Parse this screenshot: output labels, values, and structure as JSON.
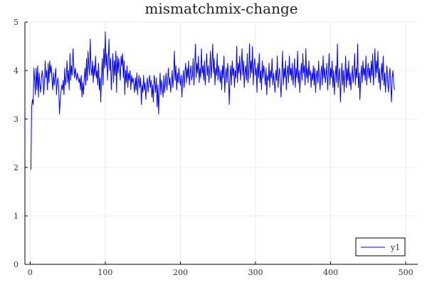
{
  "chart_data": {
    "type": "line",
    "title": "mismatchmix-change",
    "xlabel": "",
    "ylabel": "",
    "xlim": [
      -7,
      516
    ],
    "ylim": [
      0,
      5
    ],
    "xticks": [
      0,
      100,
      200,
      300,
      400,
      500
    ],
    "yticks": [
      0,
      1,
      2,
      3,
      4,
      5
    ],
    "grid": true,
    "legend_position": "bottom-right",
    "series": [
      {
        "name": "y1",
        "color": "#0000ff",
        "x_start": 1,
        "x_step": 1,
        "values": [
          1.95,
          3.25,
          3.4,
          3.3,
          4.05,
          3.8,
          3.5,
          4.05,
          3.6,
          4.1,
          3.45,
          3.95,
          3.7,
          3.55,
          3.85,
          4.0,
          3.85,
          3.5,
          3.75,
          4.2,
          3.85,
          4.0,
          3.6,
          4.15,
          3.75,
          4.2,
          3.95,
          4.1,
          3.8,
          3.6,
          3.95,
          3.7,
          3.85,
          4.05,
          3.5,
          3.75,
          3.85,
          3.65,
          3.1,
          3.4,
          3.55,
          3.7,
          3.6,
          3.8,
          3.5,
          4.05,
          3.7,
          3.85,
          4.2,
          3.75,
          4.0,
          3.6,
          4.35,
          3.8,
          4.1,
          3.9,
          4.45,
          4.1,
          3.85,
          4.05,
          3.9,
          3.8,
          3.95,
          3.85,
          3.75,
          3.85,
          3.6,
          3.9,
          3.45,
          3.75,
          3.5,
          3.85,
          4.05,
          3.7,
          4.25,
          3.8,
          4.4,
          4.1,
          3.9,
          4.65,
          4.05,
          3.9,
          4.2,
          3.75,
          4.1,
          3.9,
          4.3,
          3.85,
          4.0,
          3.7,
          4.15,
          3.6,
          3.85,
          3.35,
          3.9,
          4.25,
          3.7,
          4.45,
          4.05,
          4.8,
          4.1,
          4.35,
          3.8,
          4.2,
          4.65,
          4.0,
          4.25,
          3.6,
          4.0,
          4.35,
          3.75,
          4.2,
          3.9,
          4.4,
          3.55,
          4.3,
          3.95,
          4.25,
          4.05,
          3.8,
          4.3,
          4.1,
          4.35,
          3.85,
          4.2,
          3.5,
          4.0,
          3.75,
          4.1,
          3.65,
          3.95,
          3.8,
          4.0,
          3.6,
          3.9,
          3.75,
          3.85,
          3.7,
          3.55,
          3.85,
          3.6,
          3.95,
          3.5,
          3.75,
          3.9,
          3.65,
          3.85,
          3.3,
          3.7,
          3.55,
          3.9,
          3.6,
          3.75,
          3.4,
          3.7,
          3.85,
          3.55,
          3.75,
          3.9,
          3.65,
          3.8,
          3.45,
          3.7,
          3.35,
          3.9,
          3.75,
          3.55,
          3.85,
          3.25,
          3.7,
          3.1,
          3.6,
          3.95,
          3.5,
          3.8,
          3.65,
          3.45,
          3.9,
          3.55,
          3.75,
          3.95,
          3.6,
          3.8,
          4.05,
          3.7,
          3.85,
          3.55,
          3.75,
          4.0,
          3.65,
          3.9,
          4.4,
          3.8,
          4.1,
          3.6,
          3.95,
          3.75,
          4.05,
          3.85,
          3.7,
          3.9,
          3.45,
          3.8,
          4.0,
          3.65,
          3.95,
          4.15,
          3.75,
          4.05,
          3.85,
          4.2,
          3.7,
          3.95,
          4.1,
          3.8,
          3.9,
          4.25,
          3.7,
          4.05,
          4.55,
          3.85,
          4.15,
          3.95,
          4.3,
          3.75,
          4.05,
          3.85,
          4.45,
          3.95,
          4.1,
          3.8,
          4.2,
          3.7,
          4.05,
          4.35,
          3.9,
          4.1,
          3.75,
          4.0,
          4.4,
          3.85,
          4.15,
          4.55,
          3.95,
          4.25,
          3.7,
          4.05,
          3.9,
          4.35,
          3.8,
          4.1,
          3.95,
          3.75,
          4.0,
          3.6,
          4.1,
          3.85,
          4.3,
          3.55,
          3.9,
          4.05,
          3.75,
          4.15,
          3.95,
          3.3,
          3.85,
          4.1,
          3.7,
          4.2,
          3.9,
          4.05,
          3.65,
          4.0,
          3.85,
          4.5,
          3.75,
          4.15,
          3.95,
          4.3,
          3.8,
          4.05,
          4.45,
          3.9,
          4.2,
          3.65,
          3.95,
          4.1,
          3.8,
          4.35,
          3.75,
          4.0,
          4.55,
          3.85,
          4.2,
          3.95,
          4.5,
          3.7,
          4.1,
          4.25,
          3.9,
          4.05,
          3.55,
          4.15,
          3.85,
          4.35,
          3.75,
          4.0,
          3.6,
          4.2,
          3.85,
          4.1,
          3.95,
          3.7,
          4.05,
          3.5,
          3.9,
          3.8,
          4.15,
          3.65,
          4.0,
          3.85,
          4.25,
          3.7,
          3.95,
          3.75,
          3.55,
          4.0,
          3.8,
          4.3,
          3.65,
          3.9,
          4.05,
          3.75,
          3.45,
          3.9,
          4.4,
          3.7,
          4.05,
          3.85,
          4.2,
          3.6,
          3.95,
          4.1,
          3.75,
          4.3,
          3.9,
          4.05,
          3.8,
          4.15,
          3.7,
          3.95,
          4.25,
          3.65,
          4.05,
          3.85,
          4.4,
          3.75,
          4.0,
          3.55,
          3.9,
          4.15,
          3.8,
          4.35,
          3.95,
          4.1,
          3.7,
          4.45,
          3.85,
          4.05,
          3.75,
          4.2,
          3.9,
          4.0,
          3.65,
          3.95,
          3.8,
          4.1,
          3.7,
          4.05,
          3.55,
          3.9,
          4.0,
          3.75,
          4.2,
          3.85,
          3.6,
          3.95,
          4.1,
          3.7,
          4.3,
          3.85,
          4.05,
          3.75,
          3.9,
          4.15,
          3.6,
          3.95,
          4.35,
          3.7,
          4.05,
          3.85,
          4.2,
          3.65,
          4.0,
          3.5,
          3.85,
          4.1,
          3.75,
          4.55,
          3.65,
          3.9,
          4.05,
          3.35,
          3.8,
          4.15,
          3.7,
          4.0,
          3.55,
          3.9,
          4.3,
          3.65,
          4.05,
          3.8,
          4.2,
          3.7,
          3.95,
          3.6,
          3.85,
          4.1,
          3.75,
          3.95,
          4.35,
          3.7,
          4.05,
          3.85,
          4.55,
          3.65,
          3.95,
          3.4,
          3.85,
          4.1,
          3.75,
          4.2,
          3.9,
          4.05,
          3.8,
          4.3,
          3.7,
          3.95,
          4.15,
          3.85,
          4.05,
          3.75,
          4.2,
          3.9,
          4.35,
          3.7,
          4.05,
          4.45,
          3.85,
          4.2,
          3.95,
          4.4,
          3.75,
          4.05,
          3.6,
          3.9,
          4.15,
          3.8,
          4.3,
          3.7,
          3.95,
          3.55,
          3.85,
          4.1,
          3.75,
          3.55,
          3.9,
          4.05,
          3.7,
          3.35,
          3.85,
          4.0,
          3.75,
          3.6
        ]
      }
    ]
  }
}
